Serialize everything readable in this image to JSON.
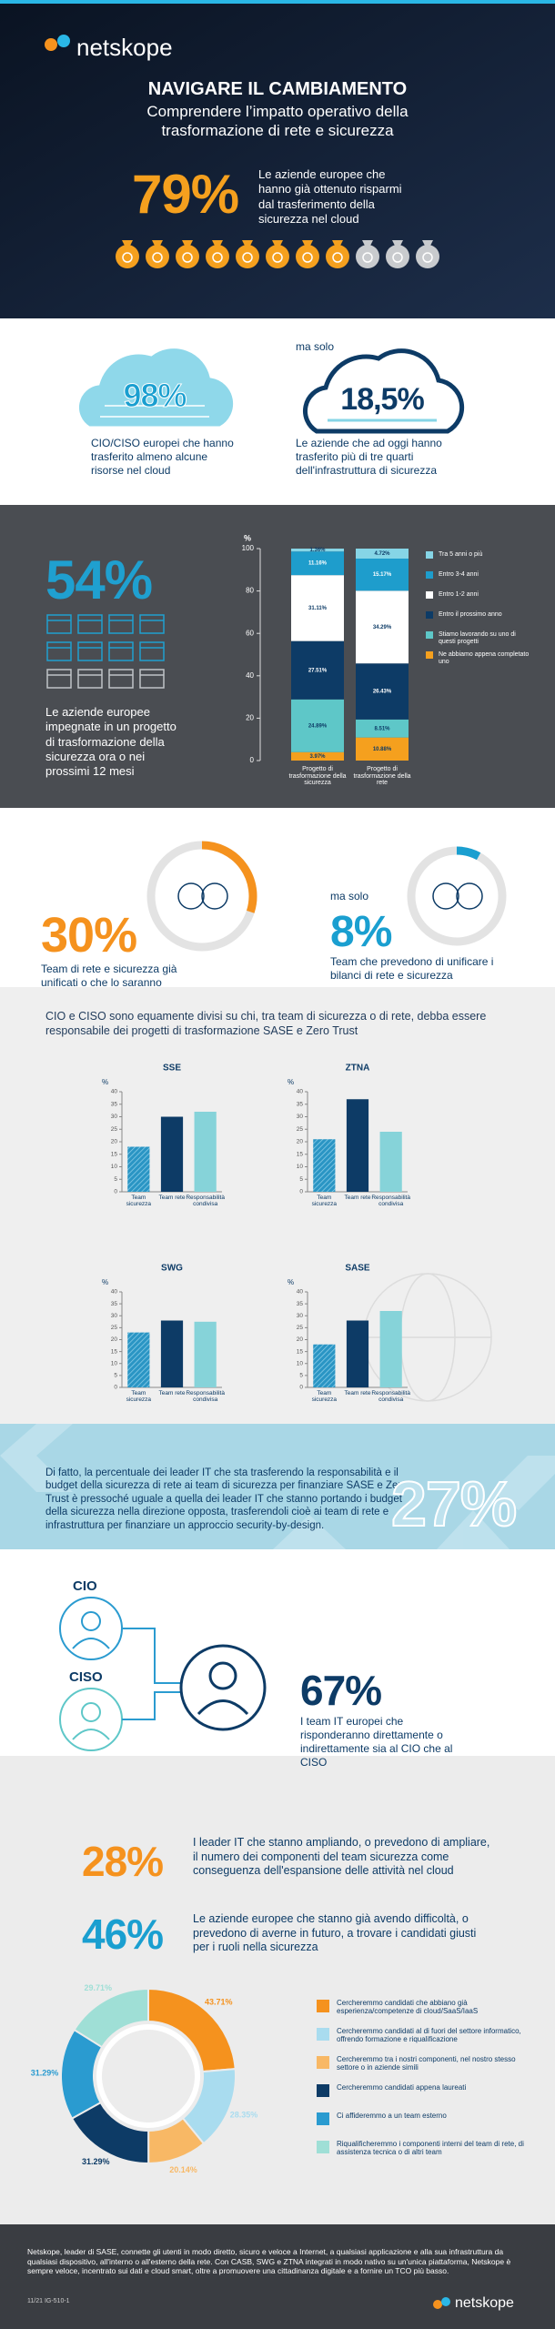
{
  "header": {
    "logo": "netskope",
    "title": "NAVIGARE IL CAMBIAMENTO",
    "subtitle": "Comprendere l’impatto operativo della trasformazione di rete e sicurezza"
  },
  "savings": {
    "stat": "79%",
    "text": "Le aziende europee che hanno già ottenuto risparmi dal trasferimento della sicurezza nel cloud"
  },
  "cloud": {
    "all_stat": "98%",
    "all_text": "CIO/CISO europei che hanno trasferito almeno alcune risorse nel cloud",
    "but": "ma solo",
    "most_stat": "18,5%",
    "most_text": "Le aziende che ad oggi hanno trasferito più di tre quarti dell'infrastruttura di sicurezza"
  },
  "projects": {
    "stat": "54%",
    "text": "Le aziende europee impegnate in un progetto di trasformazione della sicurezza ora o nei prossimi 12 mesi"
  },
  "unification": {
    "teams": {
      "value": 30,
      "label": "30%"
    },
    "teams_text": "Team di rete e sicurezza già unificati o che lo saranno",
    "but": "ma solo",
    "budgets": {
      "value": 8,
      "label": "8%"
    },
    "budgets_text": "Team che prevedono di unificare i bilanci di rete e sicurezza"
  },
  "responsibility": {
    "intro": "CIO e CISO sono equamente divisi su chi, tra team di sicurezza o di rete, debba essere responsabile dei progetti di trasformazione SASE e Zero Trust"
  },
  "budget_shift": {
    "text": "Di fatto, la percentuale dei leader IT che sta trasferendo la responsabilità e il budget della sicurezza di rete ai team di sicurezza per finanziare SASE e Zero Trust è pressoché uguale a quella dei leader IT che stanno portando i budget della sicurezza nella direzione opposta, trasferendoli cioè ai team di rete e infrastruttura per finanziare un approccio security-by-design.",
    "stat": "27%"
  },
  "reporting": {
    "cio": "CIO",
    "ciso": "CISO",
    "stat": "67%",
    "text": "I team IT europei che risponderanno direttamente o indirettamente sia al CIO che al CISO"
  },
  "hiring": {
    "growth_stat": "28%",
    "growth_text": "I leader IT che stanno ampliando, o prevedono di ampliare, il numero dei componenti del team sicurezza come conseguenza dell'espansione delle attività nel cloud",
    "difficulty_stat": "46%",
    "difficulty_text": "Le aziende europee che stanno già avendo difficoltà, o prevedono di averne in futuro, a trovare i candidati giusti per i ruoli nella sicurezza"
  },
  "footer": {
    "text": "Netskope, leader di SASE, connette gli utenti in modo diretto, sicuro e veloce a Internet, a qualsiasi applicazione e alla sua infrastruttura da qualsiasi dispositivo, all'interno o all'esterno della rete. Con CASB, SWG e ZTNA integrati in modo nativo su un'unica piattaforma, Netskope è sempre veloce, incentrato sui dati e cloud smart, oltre a promuovere una cittadinanza digitale e a fornire un TCO più basso.",
    "code": "11/21 IG-510-1",
    "logo": "netskope"
  },
  "chart_data": [
    {
      "type": "stacked_bar",
      "y_label": "%",
      "categories": [
        "Progetto di trasformazione della sicurezza",
        "Progetto di trasformazione della rete"
      ],
      "ylim": [
        0,
        100
      ],
      "yticks": [
        0,
        20,
        40,
        60,
        80,
        100
      ],
      "series": [
        {
          "name": "Ne abbiamo appena completato uno",
          "color": "#f5a01e",
          "values": [
            3.97,
            10.88
          ],
          "value_labels": [
            "3.97%",
            "10.88%"
          ]
        },
        {
          "name": "Stiamo lavorando su uno di questi progetti",
          "color": "#5ec7c8",
          "values": [
            24.89,
            8.51
          ],
          "value_labels": [
            "24.89%",
            "8.51%"
          ]
        },
        {
          "name": "Entro il prossimo anno",
          "color": "#0d3b66",
          "values": [
            27.51,
            26.43
          ],
          "value_labels": [
            "27.51%",
            "26.43%"
          ]
        },
        {
          "name": "Entro 1-2 anni",
          "color": "#ffffff",
          "values": [
            31.11,
            34.29
          ],
          "value_labels": [
            "31.11%",
            "34.29%"
          ]
        },
        {
          "name": "Entro 3-4 anni",
          "color": "#1e9dcc",
          "values": [
            11.16,
            15.17
          ],
          "value_labels": [
            "11.16%",
            "15.17%"
          ]
        },
        {
          "name": "Tra 5 anni o più",
          "color": "#86d5e6",
          "values": [
            1.36,
            4.72
          ],
          "value_labels": [
            "1.36%",
            "4.72%"
          ]
        }
      ]
    },
    {
      "type": "bar",
      "title": "SSE",
      "y_label": "%",
      "categories": [
        "Team sicurezza",
        "Team rete",
        "Responsabilità condivisa"
      ],
      "colors": [
        "#2a95c4",
        "#0d3b66",
        "#86d3d9"
      ],
      "patterns": [
        "hatch",
        "solid",
        "solid"
      ],
      "values": [
        18,
        30,
        32
      ],
      "ylim": [
        0,
        40
      ],
      "yticks": [
        0,
        5,
        10,
        15,
        20,
        25,
        30,
        35,
        40
      ]
    },
    {
      "type": "bar",
      "title": "ZTNA",
      "y_label": "%",
      "categories": [
        "Team sicurezza",
        "Team rete",
        "Responsabilità condivisa"
      ],
      "colors": [
        "#2a95c4",
        "#0d3b66",
        "#86d3d9"
      ],
      "patterns": [
        "hatch",
        "solid",
        "solid"
      ],
      "values": [
        21,
        37,
        24
      ],
      "ylim": [
        0,
        40
      ],
      "yticks": [
        0,
        5,
        10,
        15,
        20,
        25,
        30,
        35,
        40
      ]
    },
    {
      "type": "bar",
      "title": "SWG",
      "y_label": "%",
      "categories": [
        "Team sicurezza",
        "Team rete",
        "Responsabilità condivisa"
      ],
      "colors": [
        "#2a95c4",
        "#0d3b66",
        "#86d3d9"
      ],
      "patterns": [
        "hatch",
        "solid",
        "solid"
      ],
      "values": [
        23,
        28,
        27.5
      ],
      "ylim": [
        0,
        40
      ],
      "yticks": [
        0,
        5,
        10,
        15,
        20,
        25,
        30,
        35,
        40
      ]
    },
    {
      "type": "bar",
      "title": "SASE",
      "y_label": "%",
      "categories": [
        "Team sicurezza",
        "Team rete",
        "Responsabilità condivisa"
      ],
      "colors": [
        "#2a95c4",
        "#0d3b66",
        "#86d3d9"
      ],
      "patterns": [
        "hatch",
        "solid",
        "solid"
      ],
      "values": [
        18,
        28,
        32
      ],
      "ylim": [
        0,
        40
      ],
      "yticks": [
        0,
        5,
        10,
        15,
        20,
        25,
        30,
        35,
        40
      ]
    },
    {
      "type": "donut",
      "categories": [
        "Cercheremmo candidati che abbiano già esperienza/competenze di cloud/SaaS/IaaS",
        "Cercheremmo candidati al di fuori del settore informatico, offrendo formazione e riqualificazione",
        "Cercheremmo tra i nostri componenti, nel nostro stesso settore o in aziende simili",
        "Cercheremmo candidati appena laureati",
        "Ci affideremmo a un team esterno",
        "Riqualificheremmo i componenti interni del team di rete, di assistenza tecnica o di altri team"
      ],
      "colors": [
        "#f5921e",
        "#a9dcef",
        "#f8b865",
        "#0d3b66",
        "#2a9bd0",
        "#9fdfd6"
      ],
      "values": [
        43.71,
        28.35,
        20.14,
        31.29,
        31.29,
        29.71
      ],
      "value_labels": [
        "43.71%",
        "28.35%",
        "20.14%",
        "31.29%",
        "31.29%",
        "29.71%"
      ]
    }
  ]
}
